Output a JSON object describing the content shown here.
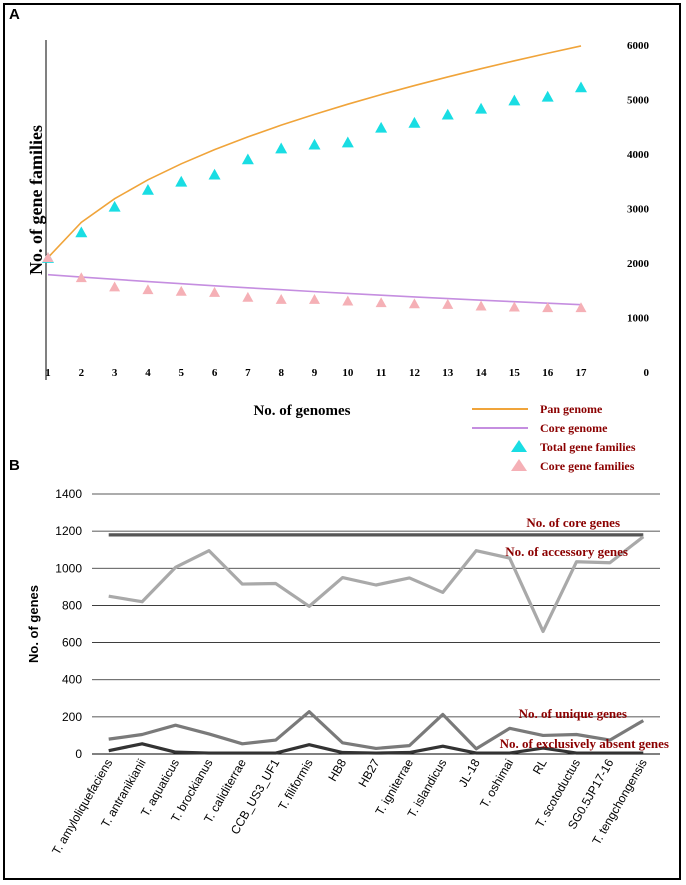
{
  "panel_labels": {
    "a": "A",
    "b": "B"
  },
  "colors": {
    "pan": "#f0a43a",
    "core": "#c58ee0",
    "total_marker": "#19dde3",
    "core_marker": "#f5b0b6",
    "core_genes": "#555555",
    "accessory_genes": "#a9a9a9",
    "unique_genes": "#7a7a7a",
    "absent_genes": "#333333",
    "label_red": "#8b0000"
  },
  "chart_data": [
    {
      "type": "scatter",
      "panel": "A",
      "title": "",
      "xlabel": "No. of genomes",
      "ylabel": "No. of gene families",
      "x": [
        1,
        2,
        3,
        4,
        5,
        6,
        7,
        8,
        9,
        10,
        11,
        12,
        13,
        14,
        15,
        16,
        17
      ],
      "x_ticks": [
        "1",
        "2",
        "3",
        "4",
        "5",
        "6",
        "7",
        "8",
        "9",
        "10",
        "11",
        "12",
        "13",
        "14",
        "15",
        "16",
        "17"
      ],
      "y_ticks": [
        "0",
        "1000",
        "2000",
        "3000",
        "4000",
        "5000",
        "6000"
      ],
      "ylim": [
        0,
        6000
      ],
      "grid": false,
      "legend": [
        "Pan genome",
        "Core genome",
        "Total gene families",
        "Core gene families"
      ],
      "legend_position": "bottom-right",
      "series": [
        {
          "name": "Total gene families",
          "kind": "triangle",
          "values": [
            2090,
            2560,
            3030,
            3340,
            3490,
            3620,
            3900,
            4100,
            4170,
            4210,
            4480,
            4570,
            4720,
            4830,
            4980,
            5050,
            5220
          ]
        },
        {
          "name": "Core gene families",
          "kind": "triangle",
          "values": [
            2100,
            1730,
            1560,
            1510,
            1480,
            1460,
            1370,
            1330,
            1330,
            1300,
            1270,
            1250,
            1240,
            1210,
            1190,
            1180,
            1180
          ]
        },
        {
          "name": "Pan genome",
          "kind": "line",
          "values": [
            2100,
            2746,
            3180,
            3526,
            3820,
            4080,
            4314,
            4529,
            4728,
            4914,
            5090,
            5256,
            5414,
            5565,
            5710,
            5849,
            5983
          ]
        },
        {
          "name": "Core genome",
          "kind": "line",
          "values": [
            1785,
            1742,
            1700,
            1660,
            1620,
            1582,
            1545,
            1510,
            1475,
            1442,
            1410,
            1378,
            1348,
            1318,
            1290,
            1262,
            1235
          ]
        }
      ]
    },
    {
      "type": "line",
      "panel": "B",
      "title": "",
      "xlabel": "",
      "ylabel": "No. of genes",
      "ylim": [
        0,
        1400
      ],
      "y_ticks": [
        "0",
        "200",
        "400",
        "600",
        "800",
        "1000",
        "1200",
        "1400"
      ],
      "grid": true,
      "categories": [
        "T. amyloliquefaciens",
        "T. antranikianii",
        "T. aquaticus",
        "T. brockianus",
        "T. caliditerrae",
        "CCB_US3_UF1",
        "T. filiformis",
        "HB8",
        "HB27",
        "T. igniterrae",
        "T. islandicus",
        "JL-18",
        "T. oshimai",
        "RL",
        "T. scotoductus",
        "SG0.5JP17-16",
        "T. tengchongensis"
      ],
      "series": [
        {
          "name": "No. of core genes",
          "values": [
            1180,
            1180,
            1180,
            1180,
            1180,
            1180,
            1180,
            1180,
            1180,
            1180,
            1180,
            1180,
            1180,
            1180,
            1180,
            1180,
            1180
          ]
        },
        {
          "name": "No. of accessory genes",
          "values": [
            850,
            820,
            1005,
            1095,
            915,
            918,
            795,
            950,
            910,
            948,
            870,
            1095,
            1055,
            660,
            1035,
            1030,
            1170
          ]
        },
        {
          "name": "No. of unique genes",
          "values": [
            80,
            105,
            155,
            108,
            55,
            75,
            228,
            60,
            30,
            45,
            213,
            28,
            138,
            100,
            105,
            75,
            180
          ]
        },
        {
          "name": "No. of exclusively absent genes",
          "values": [
            18,
            55,
            10,
            5,
            5,
            5,
            50,
            8,
            5,
            8,
            42,
            5,
            5,
            32,
            5,
            5,
            5
          ]
        }
      ]
    }
  ]
}
